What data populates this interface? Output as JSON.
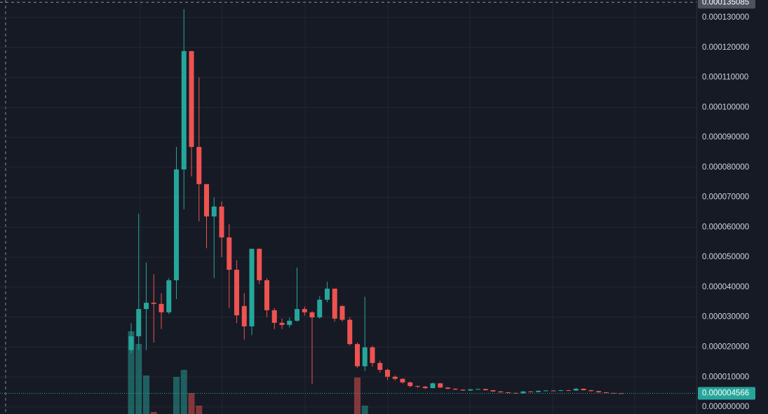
{
  "chart_data": {
    "type": "candlestick",
    "ylim": [
      0,
      0.00013585
    ],
    "yticks": [
      {
        "value": 0,
        "label": "0.000000000"
      },
      {
        "value": 1e-05,
        "label": "0.000010000"
      },
      {
        "value": 2e-05,
        "label": "0.000020000"
      },
      {
        "value": 3e-05,
        "label": "0.000030000"
      },
      {
        "value": 4e-05,
        "label": "0.000040000"
      },
      {
        "value": 5e-05,
        "label": "0.000050000"
      },
      {
        "value": 6e-05,
        "label": "0.000060000"
      },
      {
        "value": 7e-05,
        "label": "0.000070000"
      },
      {
        "value": 8e-05,
        "label": "0.000080000"
      },
      {
        "value": 9e-05,
        "label": "0.000090000"
      },
      {
        "value": 0.0001,
        "label": "0.000100000"
      },
      {
        "value": 0.00011,
        "label": "0.000110000"
      },
      {
        "value": 0.00012,
        "label": "0.000120000"
      },
      {
        "value": 0.00013,
        "label": "0.000130000"
      }
    ],
    "grid": true,
    "up_color": "#26a69a",
    "down_color": "#ef5350",
    "crosshair": {
      "value": 0.000135085,
      "label": "0.000135085"
    },
    "last_price": {
      "value": 4.566e-06,
      "label": "0.000004566"
    },
    "open": [
      1.9e-05,
      2.36e-05,
      3.27e-05,
      3.48e-05,
      3.44e-05,
      3.16e-05,
      4.23e-05,
      7.93e-05,
      0.0001188,
      8.68e-05,
      7.44e-05,
      6.36e-05,
      6.69e-05,
      5.66e-05,
      4.58e-05,
      3.37e-05,
      2.69e-05,
      5.28e-05,
      4.23e-05,
      3.23e-05,
      2.81e-05,
      2.74e-05,
      2.88e-05,
      3.27e-05,
      3.16e-05,
      2.99e-05,
      3.58e-05,
      3.95e-05,
      3.37e-05,
      2.91e-05,
      2.1e-05,
      1.36e-05,
      1.99e-05,
      1.47e-05,
      1.24e-05,
      1.01e-05,
      9.4e-06,
      8.2e-06,
      7e-06,
      6.8e-06,
      6.3e-06,
      7.9e-06,
      6.5e-06,
      6.1e-06,
      5.8e-06,
      5.5e-06,
      5.9e-06,
      6e-06,
      5.6e-06,
      5.2e-06,
      4.9e-06,
      4.7e-06,
      4.6e-06,
      5.2e-06,
      5e-06,
      5.4e-06,
      5.5e-06,
      5.4e-06,
      5.6e-06,
      5.5e-06,
      6.1e-06,
      5.6e-06,
      5.3e-06,
      4.9e-06,
      4.7e-06,
      4.6e-06
    ],
    "high": [
      2.8e-05,
      6.45e-05,
      4.82e-05,
      4.43e-05,
      3.8e-05,
      4.3e-05,
      8.68e-05,
      0.0001328,
      0.0001188,
      0.00011,
      7.44e-05,
      7e-05,
      6.86e-05,
      6.1e-05,
      4.9e-05,
      3.8e-05,
      5.28e-05,
      5.28e-05,
      4.3e-05,
      3.3e-05,
      2.95e-05,
      2.98e-05,
      4.65e-05,
      3.35e-05,
      3.2e-05,
      3.7e-05,
      4.18e-05,
      3.95e-05,
      3.4e-05,
      3e-05,
      2.15e-05,
      3.68e-05,
      2.05e-05,
      1.55e-05,
      1.28e-05,
      1.05e-05,
      9.6e-06,
      8.5e-06,
      7.2e-06,
      7e-06,
      8.2e-06,
      8e-06,
      6.6e-06,
      6.2e-06,
      5.9e-06,
      6e-06,
      6.1e-06,
      6.1e-06,
      5.7e-06,
      5.3e-06,
      5e-06,
      4.8e-06,
      5.3e-06,
      5.3e-06,
      5.5e-06,
      5.6e-06,
      5.6e-06,
      5.7e-06,
      5.7e-06,
      6.3e-06,
      6.2e-06,
      5.7e-06,
      5.4e-06,
      5e-06,
      4.7e-06,
      4.6e-06
    ],
    "low": [
      1.8e-05,
      1.9e-05,
      1.9e-05,
      2.15e-05,
      2.6e-05,
      3.1e-05,
      3.6e-05,
      6.6e-05,
      7.7e-05,
      6.2e-05,
      5.3e-05,
      4.3e-05,
      5e-05,
      3.3e-05,
      2.8e-05,
      2.25e-05,
      2.4e-05,
      4.1e-05,
      3e-05,
      2.6e-05,
      2.6e-05,
      2.65e-05,
      2.85e-05,
      3.05e-05,
      7.7e-06,
      2.95e-05,
      3.5e-05,
      2.85e-05,
      2.85e-05,
      2.05e-05,
      1.3e-05,
      1.2e-05,
      1.35e-05,
      1.15e-05,
      9e-06,
      8.8e-06,
      7.8e-06,
      6.5e-06,
      6.4e-06,
      6e-06,
      6.2e-06,
      6.3e-06,
      5.9e-06,
      5.7e-06,
      5.4e-06,
      5.4e-06,
      5.8e-06,
      5.5e-06,
      5.1e-06,
      4.8e-06,
      4.6e-06,
      4.5e-06,
      4.5e-06,
      4.9e-06,
      4.9e-06,
      5.3e-06,
      5.3e-06,
      5.3e-06,
      5.4e-06,
      5.4e-06,
      5.5e-06,
      5.2e-06,
      4.8e-06,
      4.6e-06,
      4.5e-06,
      4.55e-06
    ],
    "close": [
      2.36e-05,
      3.27e-05,
      3.48e-05,
      3.44e-05,
      3.16e-05,
      4.23e-05,
      7.93e-05,
      0.0001188,
      8.68e-05,
      7.44e-05,
      6.36e-05,
      6.69e-05,
      5.66e-05,
      4.58e-05,
      3.06e-05,
      2.69e-05,
      5.28e-05,
      4.23e-05,
      3.23e-05,
      2.81e-05,
      2.74e-05,
      2.88e-05,
      3.27e-05,
      3.16e-05,
      2.99e-05,
      3.58e-05,
      3.95e-05,
      2.95e-05,
      2.91e-05,
      2.1e-05,
      1.36e-05,
      1.99e-05,
      1.47e-05,
      1.24e-05,
      1.01e-05,
      9.4e-06,
      8.2e-06,
      7e-06,
      6.8e-06,
      6.3e-06,
      7.9e-06,
      6.5e-06,
      6.1e-06,
      5.8e-06,
      5.5e-06,
      5.9e-06,
      6e-06,
      5.6e-06,
      5.2e-06,
      4.9e-06,
      4.7e-06,
      4.6e-06,
      5.2e-06,
      5e-06,
      5.4e-06,
      5.5e-06,
      5.4e-06,
      5.6e-06,
      5.5e-06,
      6.1e-06,
      5.6e-06,
      5.3e-06,
      4.9e-06,
      4.7e-06,
      4.6e-06,
      4.566e-06
    ],
    "volume": [
      118,
      100,
      55,
      3,
      0,
      0,
      53,
      63,
      30,
      12,
      0,
      0,
      0,
      0,
      0,
      0,
      0,
      0,
      0,
      0,
      0,
      0,
      0,
      0,
      0,
      0,
      0,
      0,
      0,
      0,
      52,
      12,
      0,
      0,
      0,
      0,
      0,
      0,
      0,
      0,
      0,
      0,
      0,
      0,
      0,
      0,
      0,
      0,
      0,
      0,
      0,
      0,
      0,
      0,
      0,
      0,
      0,
      0,
      0,
      0,
      0,
      0,
      0,
      0,
      0,
      0
    ]
  }
}
